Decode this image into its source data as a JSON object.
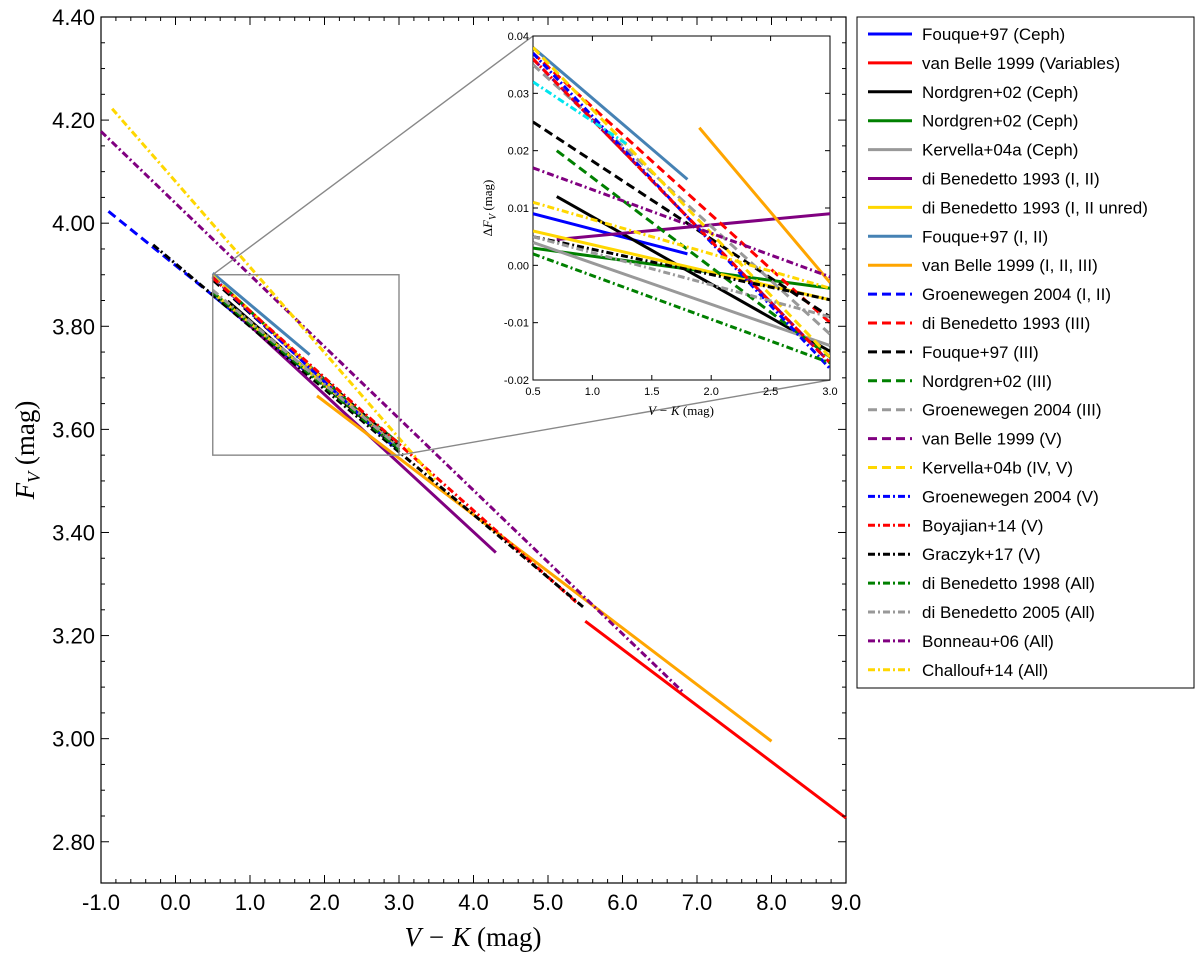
{
  "chart_data": {
    "type": "line",
    "title": "",
    "xlabel": "V − K (mag)",
    "xlabel_italic": "V − K",
    "xlabel_unit": " (mag)",
    "ylabel_italic": "F",
    "ylabel_sub": "V",
    "ylabel_unit": " (mag)",
    "xlim": [
      -1.0,
      9.0
    ],
    "ylim": [
      2.72,
      4.4
    ],
    "xticks": [
      -1.0,
      0.0,
      1.0,
      2.0,
      3.0,
      4.0,
      5.0,
      6.0,
      7.0,
      8.0,
      9.0
    ],
    "xtick_labels": [
      "-1.0",
      "0.0",
      "1.0",
      "2.0",
      "3.0",
      "4.0",
      "5.0",
      "6.0",
      "7.0",
      "8.0",
      "9.0"
    ],
    "yticks": [
      2.8,
      3.0,
      3.2,
      3.4,
      3.6,
      3.8,
      4.0,
      4.2,
      4.4
    ],
    "ytick_labels": [
      "2.80",
      "3.00",
      "3.20",
      "3.40",
      "3.60",
      "3.80",
      "4.00",
      "4.20",
      "4.40"
    ],
    "zoom_box": {
      "x": [
        0.5,
        3.0
      ],
      "y": [
        3.55,
        3.9
      ]
    },
    "legend_position": "outside-right",
    "series": [
      {
        "name": "Fouque+97 (Ceph)",
        "color": "#0000ff",
        "dash": "solid",
        "x": [
          0.5,
          1.8
        ],
        "y": [
          3.86,
          3.707
        ],
        "inset_y": [
          0.009,
          0.002
        ]
      },
      {
        "name": "van Belle 1999 (Variables)",
        "color": "#ff0000",
        "dash": "solid",
        "x": [
          5.5,
          9.0
        ],
        "y": [
          3.228,
          2.846
        ],
        "inset_y": null
      },
      {
        "name": "Nordgren+02 (Ceph)",
        "color": "#000000",
        "dash": "solid",
        "x": [
          0.7,
          3.0
        ],
        "y": [
          3.849,
          3.56
        ],
        "inset_y": [
          0.012,
          -0.015
        ]
      },
      {
        "name": "Nordgren+02 (Ceph)",
        "color": "#008000",
        "dash": "solid",
        "x": [
          0.5,
          3.0
        ],
        "y": [
          3.863,
          3.573
        ],
        "inset_y": [
          0.003,
          -0.004
        ]
      },
      {
        "name": "Kervella+04a (Ceph)",
        "color": "#999999",
        "dash": "solid",
        "x": [
          0.5,
          3.0
        ],
        "y": [
          3.864,
          3.57
        ],
        "inset_y": [
          0.004,
          -0.014
        ]
      },
      {
        "name": "di Benedetto 1993 (I, II)",
        "color": "#800080",
        "dash": "solid",
        "x": [
          0.7,
          4.3
        ],
        "y": [
          3.841,
          3.361
        ],
        "inset_y": [
          0.0045,
          0.009
        ]
      },
      {
        "name": "di Benedetto 1993 (I, II unred)",
        "color": "#ffd700",
        "dash": "solid",
        "x": [
          0.5,
          3.0
        ],
        "y": [
          3.866,
          3.567
        ],
        "inset_y": [
          0.006,
          -0.006
        ]
      },
      {
        "name": "Fouque+97 (I, II)",
        "color": "#4682b4",
        "dash": "solid",
        "x": [
          0.5,
          1.8
        ],
        "y": [
          3.903,
          3.745
        ],
        "inset_y": [
          0.038,
          0.015
        ]
      },
      {
        "name": "van Belle 1999 (I, II, III)",
        "color": "#ffa500",
        "dash": "solid",
        "x": [
          1.9,
          8.0
        ],
        "y": [
          3.665,
          2.995
        ],
        "inset_y": [
          0.024,
          -0.003
        ]
      },
      {
        "name": "Groenewegen 2004 (I, II)",
        "color": "#0000ff",
        "dash": "dashed",
        "x": [
          -0.9,
          0.5
        ],
        "y": [
          4.023,
          3.86
        ],
        "inset_y": null
      },
      {
        "name": "di Benedetto 1993 (III)",
        "color": "#ff0000",
        "dash": "dashed",
        "x": [
          0.5,
          3.0
        ],
        "y": [
          3.897,
          3.56
        ],
        "inset_y": [
          0.037,
          -0.01
        ]
      },
      {
        "name": "Fouque+97 (III)",
        "color": "#000000",
        "dash": "dashed",
        "x": [
          0.5,
          3.0
        ],
        "y": [
          3.89,
          3.568
        ],
        "inset_y": [
          0.025,
          -0.009
        ]
      },
      {
        "name": "Nordgren+02 (III)",
        "color": "#008000",
        "dash": "dashed",
        "x": [
          0.7,
          3.0
        ],
        "y": [
          3.87,
          3.562
        ],
        "inset_y": [
          0.02,
          -0.016
        ]
      },
      {
        "name": "Groenewegen 2004 (III)",
        "color": "#999999",
        "dash": "dashed",
        "x": [
          0.5,
          3.0
        ],
        "y": [
          3.895,
          3.561
        ],
        "inset_y": [
          0.035,
          -0.012
        ]
      },
      {
        "name": "van Belle 1999 (V)",
        "color": "#800080",
        "dash": "dashed",
        "x": [
          0.5,
          3.0
        ],
        "y": [
          3.896,
          3.558
        ],
        "inset_y": [
          0.036,
          -0.017
        ]
      },
      {
        "name": "Kervella+04b (IV, V)",
        "color": "#ffd700",
        "dash": "dashed",
        "x": [
          0.5,
          3.0
        ],
        "y": [
          3.898,
          3.559
        ],
        "inset_y": [
          0.038,
          -0.016
        ]
      },
      {
        "name": "Groenewegen 2004 (V)",
        "color": "#0000ff",
        "dash": "dashdot",
        "x": [
          0.5,
          3.0
        ],
        "y": [
          3.895,
          3.557
        ],
        "inset_y": [
          0.037,
          -0.018
        ]
      },
      {
        "name": "Boyajian+14 (V)",
        "color": "#ff0000",
        "dash": "dashdot",
        "x": [
          0.5,
          5.4
        ],
        "y": [
          3.894,
          3.262
        ],
        "inset_y": [
          0.036,
          -0.017
        ]
      },
      {
        "name": "Graczyk+17 (V)",
        "color": "#000000",
        "dash": "dashdot",
        "x": [
          -0.3,
          5.5
        ],
        "y": [
          3.958,
          3.252
        ],
        "inset_y": [
          0.005,
          -0.006
        ]
      },
      {
        "name": "di Benedetto 1998 (All)",
        "color": "#008000",
        "dash": "dashdot",
        "x": [
          0.5,
          3.0
        ],
        "y": [
          3.866,
          3.561
        ],
        "inset_y": [
          0.002,
          -0.017
        ]
      },
      {
        "name": "di Benedetto 2005 (All)",
        "color": "#999999",
        "dash": "dashdot",
        "x": [
          0.5,
          3.0
        ],
        "y": [
          3.87,
          3.566
        ],
        "inset_y": [
          0.005,
          -0.009
        ]
      },
      {
        "name": "Bonneau+06 (All)",
        "color": "#800080",
        "dash": "dashdot",
        "x": [
          -1.0,
          6.8
        ],
        "y": [
          4.178,
          3.092
        ],
        "inset_y": [
          0.017,
          -0.002
        ]
      },
      {
        "name": "Challouf+14 (All)",
        "color": "#ffd700",
        "dash": "dashdot",
        "x": [
          -0.85,
          3.5
        ],
        "y": [
          4.222,
          3.5
        ],
        "inset_y": [
          0.011,
          -0.004
        ]
      }
    ],
    "extra_inset_lines": [
      {
        "color": "#00e5ee",
        "dash": "dashdot",
        "inset_x": [
          0.5,
          1.3
        ],
        "inset_y": [
          0.032,
          0.021
        ]
      }
    ],
    "inset": {
      "xlim": [
        0.5,
        3.0
      ],
      "ylim": [
        -0.02,
        0.04
      ],
      "xticks": [
        0.5,
        1.0,
        1.5,
        2.0,
        2.5,
        3.0
      ],
      "xtick_labels": [
        "0.5",
        "1.0",
        "1.5",
        "2.0",
        "2.5",
        "3.0"
      ],
      "yticks": [
        -0.02,
        -0.01,
        0.0,
        0.01,
        0.02,
        0.03,
        0.04
      ],
      "ytick_labels": [
        "-0.02",
        "-0.01",
        "0.00",
        "0.01",
        "0.02",
        "0.03",
        "0.04"
      ],
      "xlabel_italic": "V − K",
      "xlabel_unit": " (mag)",
      "ylabel_prefix": "Δ",
      "ylabel_italic": "F",
      "ylabel_sub": "V",
      "ylabel_unit": " (mag)"
    }
  }
}
